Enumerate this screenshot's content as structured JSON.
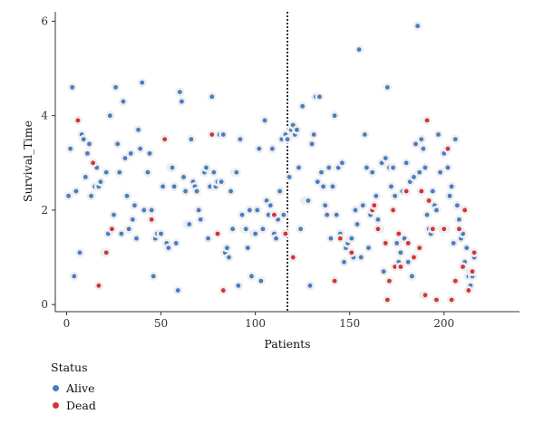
{
  "chart_data": {
    "type": "scatter",
    "title": "",
    "xlabel": "Patients",
    "ylabel": "Survival_Time",
    "xlim": [
      -6,
      240
    ],
    "ylim": [
      -0.15,
      6.2
    ],
    "xticks": [
      0,
      50,
      100,
      150,
      200
    ],
    "yticks": [
      0,
      2,
      4,
      6
    ],
    "grid": false,
    "vline": {
      "x": 117,
      "style": "dotted",
      "color": "#000000"
    },
    "legend": {
      "title": "Status",
      "placement": "bottom-left"
    },
    "series": [
      {
        "name": "Alive",
        "color": "#4a7cc3",
        "points": [
          [
            1,
            2.3
          ],
          [
            2,
            3.3
          ],
          [
            3,
            4.6
          ],
          [
            4,
            0.6
          ],
          [
            5,
            2.4
          ],
          [
            7,
            1.1
          ],
          [
            8,
            3.6
          ],
          [
            9,
            3.5
          ],
          [
            10,
            2.7
          ],
          [
            11,
            3.2
          ],
          [
            12,
            3.4
          ],
          [
            13,
            2.3
          ],
          [
            15,
            2.5
          ],
          [
            16,
            2.9
          ],
          [
            17,
            2.5
          ],
          [
            18,
            2.6
          ],
          [
            20,
            1.1
          ],
          [
            21,
            2.8
          ],
          [
            22,
            1.5
          ],
          [
            23,
            4.0
          ],
          [
            25,
            1.9
          ],
          [
            26,
            4.6
          ],
          [
            27,
            3.4
          ],
          [
            28,
            2.8
          ],
          [
            29,
            1.5
          ],
          [
            30,
            4.3
          ],
          [
            31,
            3.1
          ],
          [
            32,
            2.3
          ],
          [
            33,
            1.6
          ],
          [
            34,
            3.2
          ],
          [
            35,
            1.8
          ],
          [
            36,
            2.1
          ],
          [
            37,
            1.4
          ],
          [
            38,
            3.7
          ],
          [
            39,
            3.3
          ],
          [
            40,
            4.7
          ],
          [
            41,
            2.0
          ],
          [
            43,
            2.8
          ],
          [
            44,
            3.2
          ],
          [
            45,
            2.0
          ],
          [
            46,
            0.6
          ],
          [
            47,
            1.4
          ],
          [
            48,
            1.5
          ],
          [
            50,
            1.5
          ],
          [
            51,
            2.5
          ],
          [
            53,
            1.3
          ],
          [
            54,
            1.2
          ],
          [
            55,
            2.9
          ],
          [
            56,
            2.9
          ],
          [
            57,
            2.5
          ],
          [
            58,
            1.3
          ],
          [
            59,
            0.3
          ],
          [
            60,
            4.5
          ],
          [
            61,
            4.3
          ],
          [
            62,
            2.7
          ],
          [
            63,
            2.4
          ],
          [
            64,
            1.7
          ],
          [
            65,
            1.7
          ],
          [
            66,
            3.5
          ],
          [
            67,
            2.6
          ],
          [
            68,
            2.5
          ],
          [
            69,
            2.4
          ],
          [
            70,
            2.0
          ],
          [
            71,
            1.8
          ],
          [
            73,
            2.8
          ],
          [
            74,
            2.9
          ],
          [
            75,
            1.4
          ],
          [
            76,
            2.5
          ],
          [
            77,
            4.4
          ],
          [
            78,
            2.8
          ],
          [
            79,
            2.5
          ],
          [
            80,
            2.6
          ],
          [
            81,
            3.6
          ],
          [
            82,
            2.6
          ],
          [
            83,
            3.6
          ],
          [
            84,
            1.1
          ],
          [
            85,
            1.2
          ],
          [
            86,
            1.0
          ],
          [
            87,
            2.4
          ],
          [
            88,
            1.6
          ],
          [
            89,
            2.8
          ],
          [
            90,
            2.8
          ],
          [
            91,
            0.4
          ],
          [
            92,
            3.5
          ],
          [
            93,
            1.9
          ],
          [
            94,
            1.6
          ],
          [
            95,
            1.6
          ],
          [
            96,
            1.2
          ],
          [
            97,
            2.0
          ],
          [
            98,
            0.6
          ],
          [
            99,
            1.5
          ],
          [
            100,
            1.5
          ],
          [
            101,
            2.0
          ],
          [
            102,
            3.3
          ],
          [
            103,
            0.5
          ],
          [
            104,
            1.6
          ],
          [
            105,
            3.9
          ],
          [
            106,
            2.2
          ],
          [
            107,
            1.9
          ],
          [
            108,
            2.1
          ],
          [
            109,
            3.3
          ],
          [
            110,
            1.5
          ],
          [
            111,
            1.4
          ],
          [
            112,
            1.8
          ],
          [
            113,
            2.4
          ],
          [
            114,
            3.5
          ],
          [
            115,
            1.9
          ],
          [
            116,
            3.6
          ],
          [
            117,
            3.5
          ],
          [
            118,
            2.7
          ],
          [
            119,
            3.7
          ],
          [
            120,
            3.8
          ],
          [
            121,
            3.6
          ],
          [
            122,
            3.7
          ],
          [
            123,
            2.9
          ],
          [
            124,
            1.6
          ],
          [
            125,
            4.2
          ],
          [
            126,
            2.2
          ],
          [
            127,
            2.2
          ],
          [
            128,
            2.2
          ],
          [
            129,
            0.4
          ],
          [
            130,
            3.4
          ],
          [
            131,
            3.6
          ],
          [
            132,
            4.4
          ],
          [
            133,
            2.6
          ],
          [
            134,
            4.4
          ],
          [
            135,
            2.8
          ],
          [
            136,
            2.5
          ],
          [
            137,
            2.1
          ],
          [
            138,
            1.9
          ],
          [
            139,
            2.9
          ],
          [
            140,
            1.4
          ],
          [
            141,
            2.5
          ],
          [
            142,
            4.0
          ],
          [
            143,
            1.9
          ],
          [
            144,
            2.9
          ],
          [
            145,
            1.5
          ],
          [
            146,
            3.0
          ],
          [
            147,
            0.9
          ],
          [
            148,
            1.2
          ],
          [
            149,
            1.3
          ],
          [
            150,
            1.4
          ],
          [
            151,
            1.4
          ],
          [
            152,
            1.0
          ],
          [
            153,
            2.0
          ],
          [
            154,
            1.7
          ],
          [
            155,
            5.4
          ],
          [
            156,
            1.0
          ],
          [
            157,
            2.1
          ],
          [
            158,
            3.6
          ],
          [
            159,
            2.9
          ],
          [
            160,
            1.2
          ],
          [
            161,
            1.9
          ],
          [
            162,
            2.8
          ],
          [
            163,
            2.1
          ],
          [
            164,
            2.3
          ],
          [
            165,
            1.8
          ],
          [
            166,
            1.6
          ],
          [
            167,
            3.0
          ],
          [
            168,
            0.7
          ],
          [
            169,
            3.1
          ],
          [
            170,
            4.6
          ],
          [
            171,
            2.9
          ],
          [
            172,
            2.5
          ],
          [
            173,
            2.9
          ],
          [
            174,
            2.3
          ],
          [
            175,
            1.3
          ],
          [
            176,
            0.9
          ],
          [
            177,
            1.1
          ],
          [
            178,
            2.4
          ],
          [
            179,
            1.4
          ],
          [
            180,
            3.0
          ],
          [
            181,
            0.9
          ],
          [
            182,
            2.6
          ],
          [
            183,
            0.6
          ],
          [
            184,
            2.7
          ],
          [
            185,
            3.4
          ],
          [
            186,
            5.9
          ],
          [
            187,
            2.8
          ],
          [
            188,
            3.5
          ],
          [
            189,
            3.3
          ],
          [
            190,
            2.9
          ],
          [
            191,
            1.9
          ],
          [
            192,
            1.6
          ],
          [
            193,
            1.5
          ],
          [
            194,
            2.4
          ],
          [
            195,
            2.1
          ],
          [
            196,
            2.0
          ],
          [
            197,
            3.6
          ],
          [
            198,
            2.8
          ],
          [
            199,
            1.6
          ],
          [
            200,
            3.2
          ],
          [
            201,
            1.6
          ],
          [
            202,
            2.9
          ],
          [
            203,
            2.3
          ],
          [
            204,
            2.5
          ],
          [
            205,
            1.3
          ],
          [
            206,
            3.5
          ],
          [
            207,
            2.1
          ],
          [
            208,
            1.8
          ],
          [
            209,
            1.4
          ],
          [
            210,
            1.5
          ],
          [
            211,
            0.9
          ],
          [
            212,
            1.2
          ],
          [
            213,
            0.6
          ],
          [
            214,
            0.4
          ],
          [
            215,
            0.6
          ],
          [
            216,
            1.0
          ]
        ]
      },
      {
        "name": "Dead",
        "color": "#d6323a",
        "points": [
          [
            6,
            3.9
          ],
          [
            14,
            3.0
          ],
          [
            17,
            0.4
          ],
          [
            21,
            1.1
          ],
          [
            24,
            1.6
          ],
          [
            45,
            1.8
          ],
          [
            52,
            3.5
          ],
          [
            77,
            3.6
          ],
          [
            80,
            1.5
          ],
          [
            83,
            0.3
          ],
          [
            110,
            1.9
          ],
          [
            116,
            1.5
          ],
          [
            120,
            1.0
          ],
          [
            142,
            0.5
          ],
          [
            145,
            1.4
          ],
          [
            151,
            1.1
          ],
          [
            162,
            2.0
          ],
          [
            163,
            2.1
          ],
          [
            165,
            1.6
          ],
          [
            169,
            1.3
          ],
          [
            170,
            0.1
          ],
          [
            171,
            0.5
          ],
          [
            173,
            2.0
          ],
          [
            174,
            0.8
          ],
          [
            176,
            1.5
          ],
          [
            177,
            0.8
          ],
          [
            180,
            2.4
          ],
          [
            181,
            1.3
          ],
          [
            184,
            1.0
          ],
          [
            187,
            1.2
          ],
          [
            188,
            2.4
          ],
          [
            189,
            0.2
          ],
          [
            190,
            0.2
          ],
          [
            191,
            3.9
          ],
          [
            192,
            2.2
          ],
          [
            194,
            1.6
          ],
          [
            196,
            0.1
          ],
          [
            200,
            1.6
          ],
          [
            202,
            3.3
          ],
          [
            204,
            0.1
          ],
          [
            206,
            0.5
          ],
          [
            208,
            1.6
          ],
          [
            210,
            0.8
          ],
          [
            211,
            2.0
          ],
          [
            213,
            0.3
          ],
          [
            214,
            0.7
          ],
          [
            215,
            0.7
          ],
          [
            216,
            1.1
          ]
        ]
      }
    ]
  }
}
